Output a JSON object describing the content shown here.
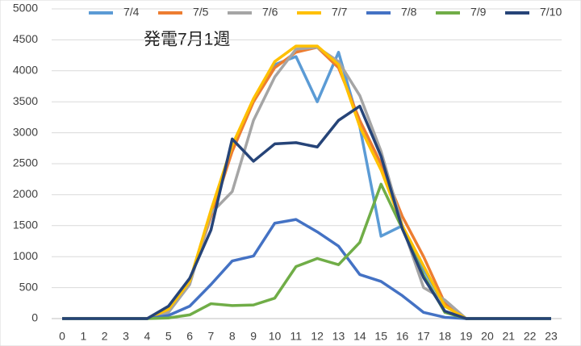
{
  "chart_data": {
    "type": "line",
    "title": "発電7月1週",
    "x": [
      0,
      1,
      2,
      3,
      4,
      5,
      6,
      7,
      8,
      9,
      10,
      11,
      12,
      13,
      14,
      15,
      16,
      17,
      18,
      19,
      20,
      21,
      22,
      23
    ],
    "xlim": [
      0,
      23
    ],
    "ylim": [
      0,
      5000
    ],
    "yticks": [
      0,
      500,
      1000,
      1500,
      2000,
      2500,
      3000,
      3500,
      4000,
      4500,
      5000
    ],
    "grid": true,
    "legend": "top",
    "series": [
      {
        "name": "7/4",
        "color": "#5b9bd5",
        "values": [
          0,
          0,
          0,
          0,
          0,
          100,
          600,
          1650,
          2800,
          3500,
          4100,
          4230,
          3500,
          4300,
          3100,
          1330,
          1500,
          800,
          200,
          0,
          0,
          0,
          0,
          0
        ]
      },
      {
        "name": "7/5",
        "color": "#ed7d31",
        "values": [
          0,
          0,
          0,
          0,
          0,
          150,
          600,
          1650,
          2700,
          3500,
          4050,
          4300,
          4380,
          4050,
          3200,
          2500,
          1650,
          1000,
          250,
          0,
          0,
          0,
          0,
          0
        ]
      },
      {
        "name": "7/6",
        "color": "#a5a5a5",
        "values": [
          0,
          0,
          0,
          0,
          0,
          100,
          550,
          1700,
          2050,
          3200,
          3900,
          4350,
          4380,
          4150,
          3600,
          2700,
          1500,
          500,
          300,
          0,
          0,
          0,
          0,
          0
        ]
      },
      {
        "name": "7/7",
        "color": "#ffc000",
        "values": [
          0,
          0,
          0,
          0,
          0,
          150,
          600,
          1750,
          2800,
          3550,
          4150,
          4400,
          4400,
          4100,
          3100,
          2400,
          1500,
          850,
          200,
          0,
          0,
          0,
          0,
          0
        ]
      },
      {
        "name": "7/8",
        "color": "#4472c4",
        "values": [
          0,
          0,
          0,
          0,
          0,
          50,
          200,
          550,
          930,
          1010,
          1540,
          1600,
          1400,
          1170,
          710,
          600,
          370,
          100,
          20,
          0,
          0,
          0,
          0,
          0
        ]
      },
      {
        "name": "7/9",
        "color": "#70ad47",
        "values": [
          0,
          0,
          0,
          0,
          0,
          10,
          60,
          240,
          210,
          220,
          330,
          840,
          970,
          870,
          1230,
          2170,
          1450,
          700,
          100,
          0,
          0,
          0,
          0,
          0
        ]
      },
      {
        "name": "7/10",
        "color": "#264478",
        "values": [
          0,
          0,
          0,
          0,
          0,
          200,
          650,
          1430,
          2900,
          2540,
          2820,
          2840,
          2770,
          3200,
          3430,
          2620,
          1450,
          660,
          120,
          0,
          0,
          0,
          0,
          0
        ]
      }
    ]
  }
}
